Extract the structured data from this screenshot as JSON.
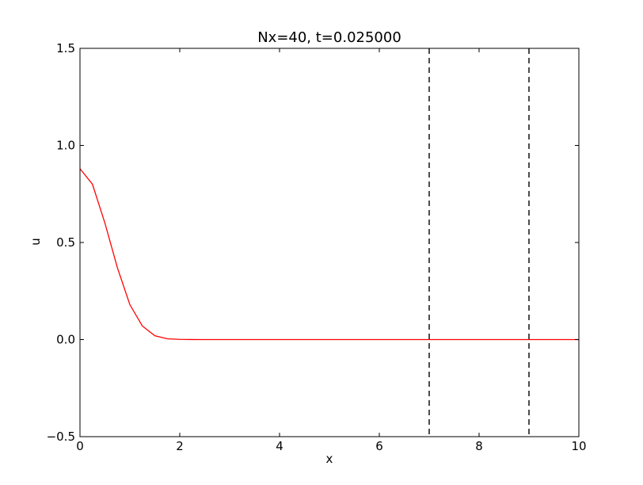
{
  "chart_data": {
    "type": "line",
    "title": "Nx=40, t=0.025000",
    "xlabel": "x",
    "ylabel": "u",
    "xlim": [
      0,
      10
    ],
    "ylim": [
      -0.5,
      1.5
    ],
    "xticks": [
      0,
      2,
      4,
      6,
      8,
      10
    ],
    "xtick_labels": [
      "0",
      "2",
      "4",
      "6",
      "8",
      "10"
    ],
    "yticks": [
      -0.5,
      0.0,
      0.5,
      1.0,
      1.5
    ],
    "ytick_labels": [
      "−0.5",
      "0.0",
      "0.5",
      "1.0",
      "1.5"
    ],
    "grid": false,
    "series": [
      {
        "color": "#ff0000",
        "style": "solid",
        "x": [
          0,
          0.25,
          0.5,
          0.75,
          1.0,
          1.25,
          1.5,
          1.75,
          2.0,
          2.25,
          2.5,
          3,
          4,
          5,
          6,
          7,
          8,
          9,
          10
        ],
        "y": [
          0.88,
          0.8,
          0.6,
          0.37,
          0.18,
          0.07,
          0.02,
          0.004,
          0.001,
          0.0002,
          0,
          0,
          0,
          0,
          0,
          0,
          0,
          0,
          0
        ]
      }
    ],
    "vlines": [
      {
        "x": 7,
        "color": "#000000",
        "style": "dashed"
      },
      {
        "x": 9,
        "color": "#000000",
        "style": "dashed"
      }
    ]
  }
}
